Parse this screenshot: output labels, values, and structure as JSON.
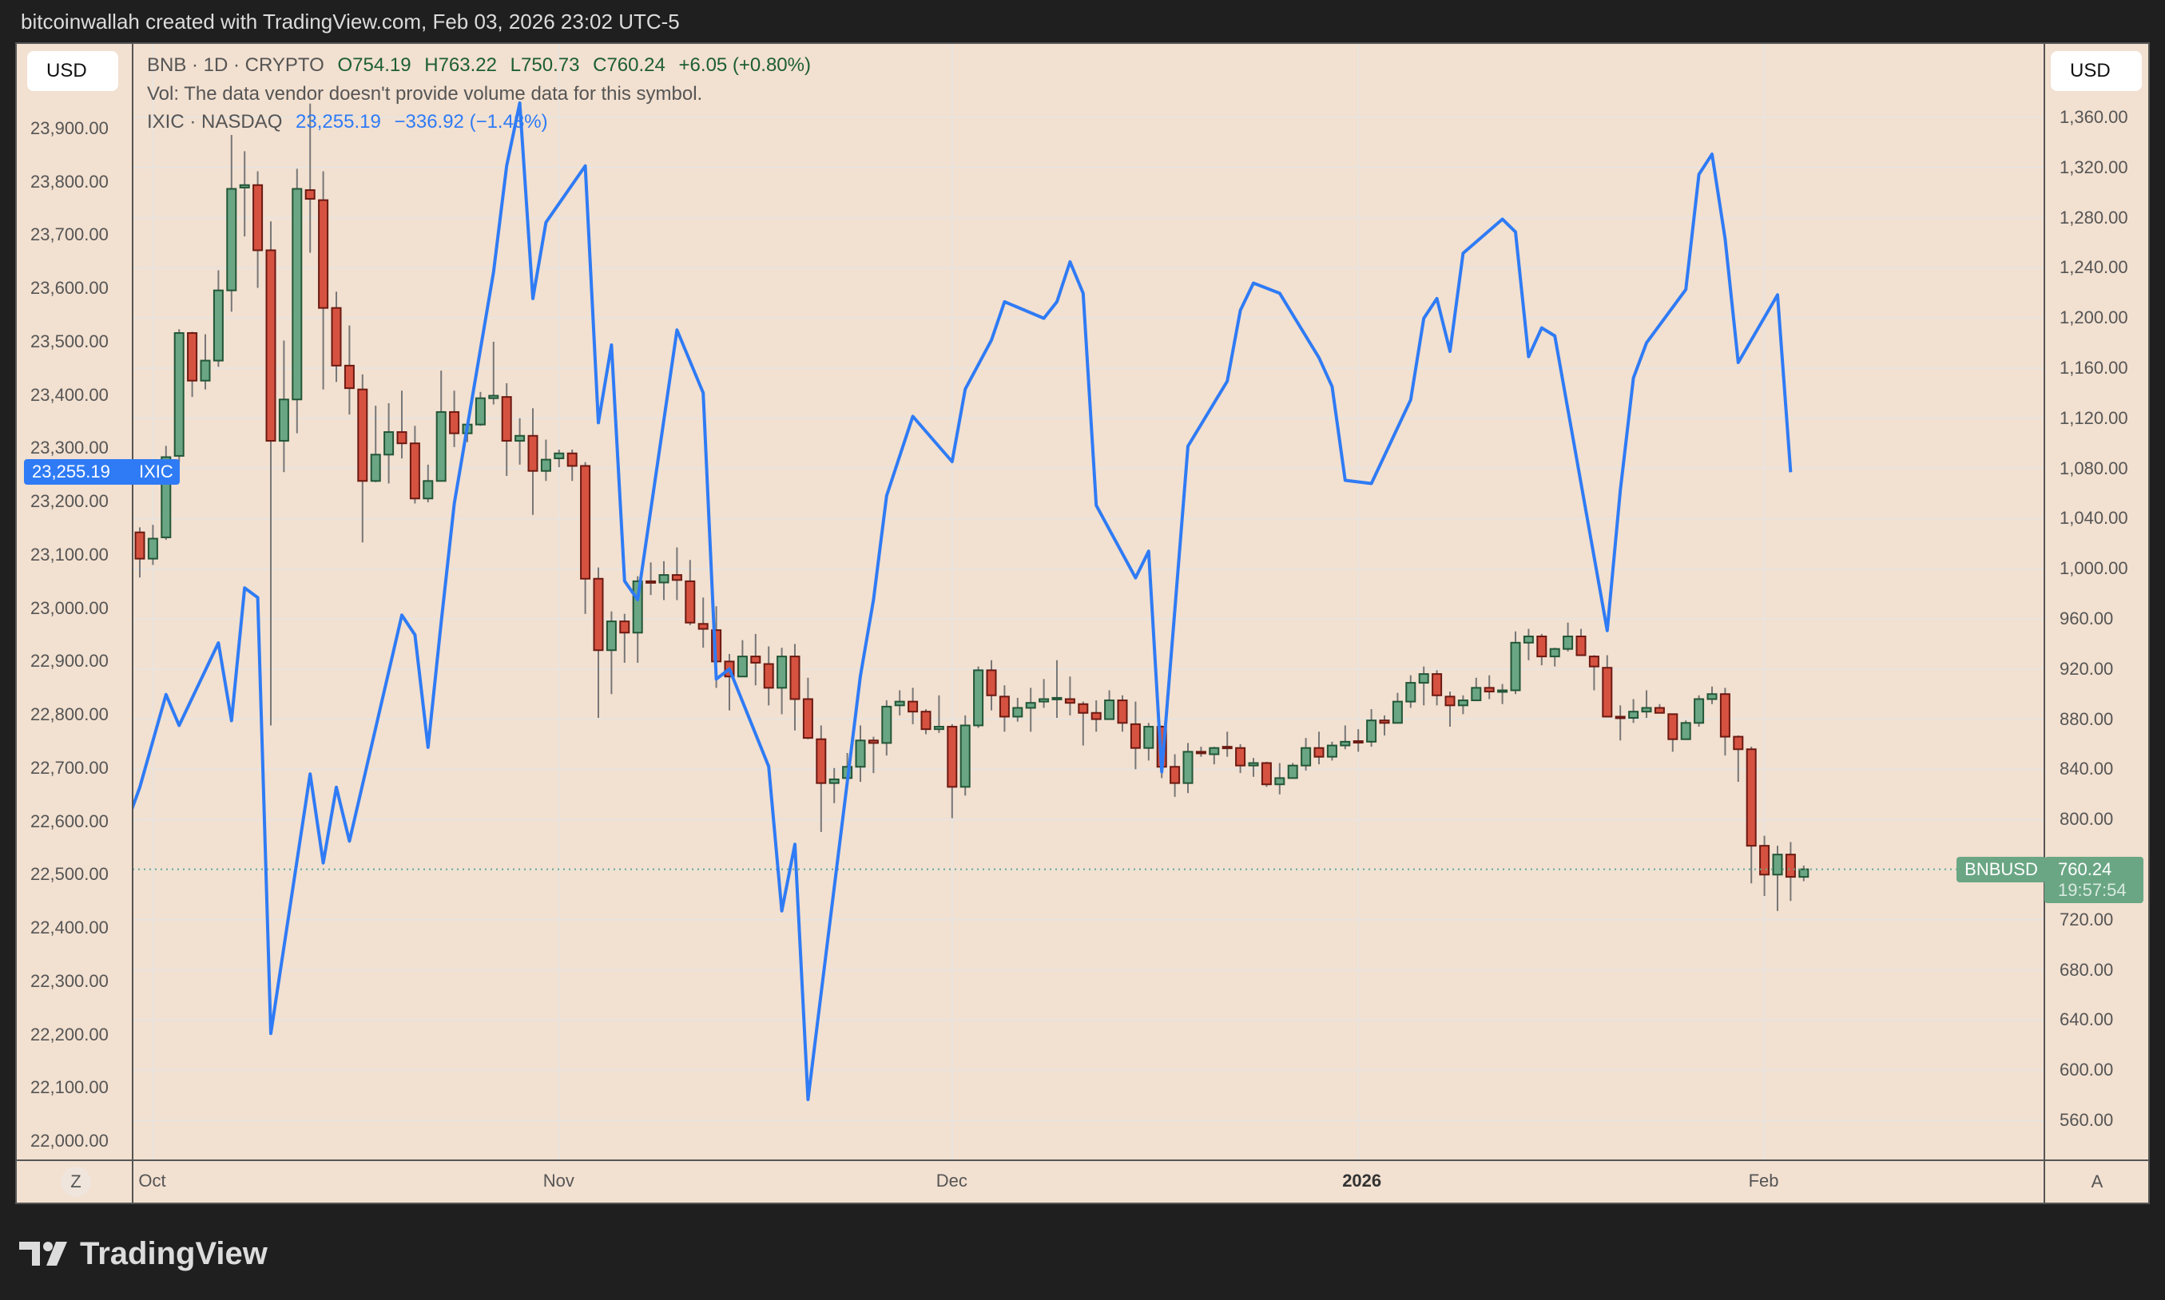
{
  "header": {
    "attribution": "bitcoinwallah created with TradingView.com, Feb 03, 2026 23:02 UTC-5"
  },
  "left_scale": {
    "currency_button": "USD"
  },
  "right_scale": {
    "currency_button": "USD"
  },
  "legend": {
    "main_symbol": "BNB · 1D · CRYPTO",
    "open": "O754.19",
    "high": "H763.22",
    "low": "L750.73",
    "close": "C760.24",
    "change": "+6.05 (+0.80%)",
    "volume_note": "Vol: The data vendor doesn't provide volume data for this symbol.",
    "compare_symbol": "IXIC · NASDAQ",
    "compare_value": "23,255.19",
    "compare_change": "−336.92 (−1.43%)"
  },
  "tags": {
    "ixic_value": "23,255.19",
    "ixic_label": "IXIC",
    "bnb_label": "BNBUSD",
    "bnb_price": "760.24",
    "bnb_countdown": "19:57:54"
  },
  "time_axis_buttons": {
    "left": "Z",
    "right": "A"
  },
  "footer": {
    "logo_text": "TradingView"
  },
  "colors": {
    "background": "#f2e0d0",
    "up": "#6aa684",
    "up_border": "#235638",
    "down": "#d65240",
    "down_border": "#6b1a12",
    "ixic_line": "#2f7bf5",
    "last_price": "#6aa684"
  },
  "chart_data": {
    "type": "candlestick+line",
    "title": "BNB · 1D · CRYPTO vs IXIC · NASDAQ",
    "x_unit": "day index (0 = Sep 30, 2025)",
    "x_ticks": [
      {
        "label": "Oct",
        "index": 1,
        "bold": false
      },
      {
        "label": "Nov",
        "index": 32,
        "bold": false
      },
      {
        "label": "Dec",
        "index": 62,
        "bold": false
      },
      {
        "label": "2026",
        "index": 93,
        "bold": true
      },
      {
        "label": "Feb",
        "index": 124,
        "bold": false
      }
    ],
    "right_axis": {
      "name": "BNBUSD",
      "ylim": [
        560,
        1360
      ],
      "ticks": [
        1360,
        1320,
        1280,
        1240,
        1200,
        1160,
        1120,
        1080,
        1040,
        1000,
        960,
        920,
        880,
        840,
        800,
        720,
        680,
        640,
        600,
        560
      ],
      "tick_labels": [
        "1,360.00",
        "1,320.00",
        "1,280.00",
        "1,240.00",
        "1,200.00",
        "1,160.00",
        "1,120.00",
        "1,080.00",
        "1,040.00",
        "1,000.00",
        "960.00",
        "920.00",
        "880.00",
        "840.00",
        "800.00",
        "720.00",
        "680.00",
        "640.00",
        "600.00",
        "560.00"
      ]
    },
    "left_axis": {
      "name": "IXIC",
      "ylim": [
        22000,
        23900
      ],
      "ticks": [
        23900,
        23800,
        23700,
        23600,
        23500,
        23400,
        23300,
        23200,
        23100,
        23000,
        22900,
        22800,
        22700,
        22600,
        22500,
        22400,
        22300,
        22200,
        22100,
        22000
      ],
      "tick_labels": [
        "23,900.00",
        "23,800.00",
        "23,700.00",
        "23,600.00",
        "23,500.00",
        "23,400.00",
        "23,300.00",
        "23,200.00",
        "23,100.00",
        "23,000.00",
        "22,900.00",
        "22,800.00",
        "22,700.00",
        "22,600.00",
        "22,500.00",
        "22,400.00",
        "22,300.00",
        "22,200.00",
        "22,100.00",
        "22,000.00"
      ]
    },
    "last_price": 760.24,
    "ixic_last": 23255.19,
    "candles_ohlc": [
      [
        1029,
        1033,
        993,
        1008
      ],
      [
        1008,
        1035,
        1003,
        1024
      ],
      [
        1025,
        1098,
        1023,
        1089
      ],
      [
        1090,
        1191,
        1085,
        1188
      ],
      [
        1188,
        1189,
        1137,
        1150
      ],
      [
        1150,
        1187,
        1143,
        1166
      ],
      [
        1166,
        1238,
        1161,
        1222
      ],
      [
        1222,
        1346,
        1205,
        1303
      ],
      [
        1304,
        1333,
        1265,
        1306
      ],
      [
        1306,
        1317,
        1224,
        1254
      ],
      [
        1254,
        1277,
        875,
        1102
      ],
      [
        1102,
        1182,
        1077,
        1135
      ],
      [
        1135,
        1319,
        1108,
        1303
      ],
      [
        1302,
        1371,
        1252,
        1295
      ],
      [
        1294,
        1317,
        1143,
        1208
      ],
      [
        1208,
        1221,
        1149,
        1162
      ],
      [
        1162,
        1194,
        1123,
        1144
      ],
      [
        1143,
        1155,
        1021,
        1070
      ],
      [
        1070,
        1130,
        1069,
        1091
      ],
      [
        1091,
        1132,
        1068,
        1109
      ],
      [
        1109,
        1142,
        1088,
        1100
      ],
      [
        1100,
        1114,
        1052,
        1056
      ],
      [
        1056,
        1083,
        1053,
        1070
      ],
      [
        1070,
        1158,
        1070,
        1125
      ],
      [
        1125,
        1142,
        1097,
        1108
      ],
      [
        1108,
        1115,
        1101,
        1115
      ],
      [
        1115,
        1141,
        1114,
        1136
      ],
      [
        1136,
        1181,
        1131,
        1138
      ],
      [
        1137,
        1148,
        1074,
        1102
      ],
      [
        1102,
        1120,
        1083,
        1106
      ],
      [
        1106,
        1128,
        1043,
        1078
      ],
      [
        1078,
        1103,
        1070,
        1087
      ],
      [
        1088,
        1095,
        1081,
        1092
      ],
      [
        1092,
        1095,
        1070,
        1082
      ],
      [
        1082,
        1085,
        964,
        992
      ],
      [
        992,
        1001,
        881,
        935
      ],
      [
        935,
        966,
        900,
        958
      ],
      [
        958,
        964,
        925,
        949
      ],
      [
        949,
        994,
        925,
        990
      ],
      [
        990,
        1005,
        979,
        989
      ],
      [
        989,
        1006,
        975,
        995
      ],
      [
        995,
        1017,
        975,
        991
      ],
      [
        990,
        1007,
        955,
        957
      ],
      [
        956,
        977,
        937,
        952
      ],
      [
        951,
        970,
        905,
        926
      ],
      [
        926,
        932,
        887,
        914
      ],
      [
        914,
        943,
        914,
        930
      ],
      [
        930,
        948,
        907,
        925
      ],
      [
        924,
        938,
        891,
        905
      ],
      [
        905,
        937,
        884,
        930
      ],
      [
        930,
        940,
        871,
        896
      ],
      [
        896,
        913,
        864,
        865
      ],
      [
        864,
        875,
        790,
        829
      ],
      [
        829,
        841,
        813,
        832
      ],
      [
        833,
        853,
        833,
        842
      ],
      [
        842,
        875,
        830,
        863
      ],
      [
        863,
        866,
        837,
        861
      ],
      [
        861,
        895,
        851,
        890
      ],
      [
        891,
        903,
        883,
        894
      ],
      [
        894,
        905,
        876,
        886
      ],
      [
        886,
        888,
        868,
        872
      ],
      [
        872,
        899,
        869,
        874
      ],
      [
        874,
        876,
        801,
        826
      ],
      [
        826,
        883,
        819,
        875
      ],
      [
        875,
        922,
        873,
        919
      ],
      [
        919,
        927,
        887,
        899
      ],
      [
        898,
        907,
        870,
        882
      ],
      [
        882,
        897,
        878,
        889
      ],
      [
        889,
        905,
        870,
        893
      ],
      [
        894,
        912,
        889,
        896
      ],
      [
        897,
        927,
        881,
        897
      ],
      [
        896,
        914,
        883,
        893
      ],
      [
        892,
        894,
        859,
        885
      ],
      [
        885,
        895,
        870,
        880
      ],
      [
        880,
        903,
        880,
        895
      ],
      [
        895,
        899,
        870,
        877
      ],
      [
        876,
        894,
        840,
        857
      ],
      [
        857,
        877,
        847,
        874
      ],
      [
        874,
        875,
        833,
        842
      ],
      [
        842,
        852,
        818,
        829
      ],
      [
        829,
        861,
        821,
        854
      ],
      [
        854,
        858,
        850,
        853
      ],
      [
        852,
        858,
        844,
        857
      ],
      [
        858,
        870,
        850,
        857
      ],
      [
        857,
        860,
        837,
        843
      ],
      [
        843,
        849,
        834,
        845
      ],
      [
        845,
        846,
        826,
        828
      ],
      [
        828,
        845,
        820,
        833
      ],
      [
        833,
        845,
        833,
        843
      ],
      [
        843,
        865,
        839,
        857
      ],
      [
        857,
        870,
        844,
        850
      ],
      [
        850,
        862,
        847,
        859
      ],
      [
        859,
        875,
        856,
        862
      ],
      [
        862.5,
        872,
        854,
        862
      ],
      [
        862,
        888,
        858,
        879
      ],
      [
        879,
        883,
        867,
        877
      ],
      [
        877,
        901,
        877,
        894
      ],
      [
        894,
        915,
        889,
        909
      ],
      [
        909,
        922,
        891,
        916
      ],
      [
        916,
        919,
        891,
        899
      ],
      [
        898,
        902,
        874,
        891
      ],
      [
        891,
        899,
        884,
        895
      ],
      [
        895,
        913,
        895,
        905
      ],
      [
        905,
        915,
        896,
        902
      ],
      [
        902,
        908,
        892,
        903
      ],
      [
        903,
        950,
        900,
        941
      ],
      [
        941,
        952,
        927,
        946
      ],
      [
        946,
        948,
        923,
        930
      ],
      [
        930,
        937,
        922,
        936
      ],
      [
        936,
        957,
        934,
        946
      ],
      [
        946,
        952,
        931,
        931
      ],
      [
        930,
        931,
        903,
        922
      ],
      [
        921,
        931,
        882,
        882
      ],
      [
        882,
        891,
        863,
        881
      ],
      [
        881,
        896,
        877,
        886
      ],
      [
        886,
        903,
        881,
        889
      ],
      [
        889,
        892,
        885,
        885
      ],
      [
        884,
        884,
        854,
        864
      ],
      [
        864,
        879,
        864,
        877
      ],
      [
        877,
        899,
        874,
        896
      ],
      [
        896,
        906,
        892,
        900
      ],
      [
        900,
        905,
        851,
        866
      ],
      [
        866,
        867,
        830,
        856
      ],
      [
        856,
        858,
        749,
        779
      ],
      [
        779,
        787,
        739,
        756
      ],
      [
        756,
        779,
        727,
        772
      ],
      [
        772,
        782,
        735,
        754.19
      ],
      [
        754.19,
        763.22,
        750.73,
        760.24
      ]
    ],
    "ixic_points": [
      [
        -1,
        22596
      ],
      [
        0,
        22664
      ],
      [
        1,
        22751
      ],
      [
        2,
        22838
      ],
      [
        3,
        22780
      ],
      [
        6,
        22935
      ],
      [
        7,
        22789
      ],
      [
        8,
        23038
      ],
      [
        9,
        23020
      ],
      [
        10,
        22202
      ],
      [
        13,
        22689
      ],
      [
        14,
        22522
      ],
      [
        15,
        22664
      ],
      [
        16,
        22563
      ],
      [
        17,
        22669
      ],
      [
        20,
        22987
      ],
      [
        21,
        22950
      ],
      [
        22,
        22739
      ],
      [
        23,
        22973
      ],
      [
        24,
        23196
      ],
      [
        27,
        23631
      ],
      [
        28,
        23830
      ],
      [
        29,
        23948
      ],
      [
        30,
        23581
      ],
      [
        31,
        23724
      ],
      [
        34,
        23830
      ],
      [
        35,
        23348
      ],
      [
        36,
        23494
      ],
      [
        37,
        23051
      ],
      [
        38,
        23016
      ],
      [
        41,
        23522
      ],
      [
        42,
        23463
      ],
      [
        43,
        23404
      ],
      [
        44,
        22867
      ],
      [
        45,
        22886
      ],
      [
        48,
        22703
      ],
      [
        49,
        22432
      ],
      [
        50,
        22557
      ],
      [
        51,
        22078
      ],
      [
        52,
        22277
      ],
      [
        55,
        22873
      ],
      [
        56,
        23016
      ],
      [
        57,
        23211
      ],
      [
        59,
        23360
      ],
      [
        62,
        23275
      ],
      [
        63,
        23411
      ],
      [
        64,
        23457
      ],
      [
        65,
        23503
      ],
      [
        66,
        23575
      ],
      [
        69,
        23544
      ],
      [
        70,
        23575
      ],
      [
        71,
        23650
      ],
      [
        72,
        23591
      ],
      [
        73,
        23193
      ],
      [
        76,
        23057
      ],
      [
        77,
        23107
      ],
      [
        78,
        22693
      ],
      [
        79,
        22997
      ],
      [
        80,
        23304
      ],
      [
        83,
        23426
      ],
      [
        84,
        23559
      ],
      [
        85,
        23610
      ],
      [
        87,
        23591
      ],
      [
        90,
        23470
      ],
      [
        91,
        23416
      ],
      [
        92,
        23240
      ],
      [
        94,
        23234
      ],
      [
        97,
        23391
      ],
      [
        98,
        23544
      ],
      [
        99,
        23581
      ],
      [
        100,
        23482
      ],
      [
        101,
        23666
      ],
      [
        104,
        23730
      ],
      [
        105,
        23706
      ],
      [
        106,
        23472
      ],
      [
        107,
        23526
      ],
      [
        108,
        23511
      ],
      [
        112,
        22958
      ],
      [
        113,
        23221
      ],
      [
        114,
        23432
      ],
      [
        115,
        23498
      ],
      [
        118,
        23598
      ],
      [
        119,
        23814
      ],
      [
        120,
        23852
      ],
      [
        121,
        23693
      ],
      [
        122,
        23461
      ],
      [
        125,
        23588
      ],
      [
        126,
        23255.19
      ]
    ],
    "grid": true
  }
}
